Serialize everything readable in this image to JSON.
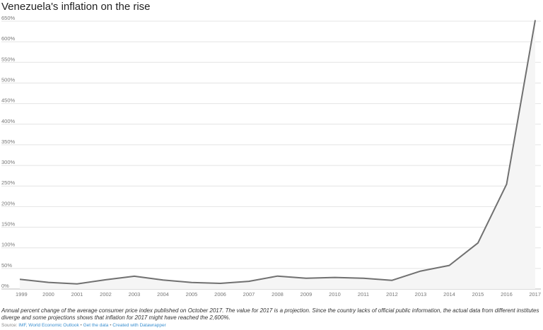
{
  "chart_data": {
    "type": "area",
    "title": "Venezuela's inflation on the rise",
    "x": [
      "1999",
      "2000",
      "2001",
      "2002",
      "2003",
      "2004",
      "2005",
      "2006",
      "2007",
      "2008",
      "2009",
      "2010",
      "2011",
      "2012",
      "2013",
      "2014",
      "2015",
      "2016",
      "2017"
    ],
    "series": [
      {
        "values": [
          23.6,
          16.2,
          12.5,
          22.4,
          31.1,
          21.7,
          16.0,
          13.7,
          18.7,
          31.4,
          26.0,
          28.2,
          26.1,
          21.1,
          43.5,
          57.3,
          111.8,
          254.4,
          652.7
        ]
      }
    ],
    "y_ticks": [
      "0%",
      "50%",
      "100%",
      "150%",
      "200%",
      "250%",
      "300%",
      "350%",
      "400%",
      "450%",
      "500%",
      "550%",
      "600%",
      "650%"
    ],
    "ylim": [
      0,
      650
    ],
    "grid": true,
    "line_color": "#707070",
    "fill_color": "#f5f5f5",
    "grid_color": "#e4e4e4"
  },
  "note": "Annual percent change of the average consumer price index published on October 2017. The value for 2017 is a projection. Since the country lacks of official public information, the actual data from different institutes diverge and some projections shows that inflation for 2017 might have reached the 2,600%.",
  "source": {
    "prefix": "Source: ",
    "source_name": "IMF, World Economic Outlook",
    "sep1": " • ",
    "get_data": "Get the data",
    "sep2": " • ",
    "created": "Created with Datawrapper"
  }
}
